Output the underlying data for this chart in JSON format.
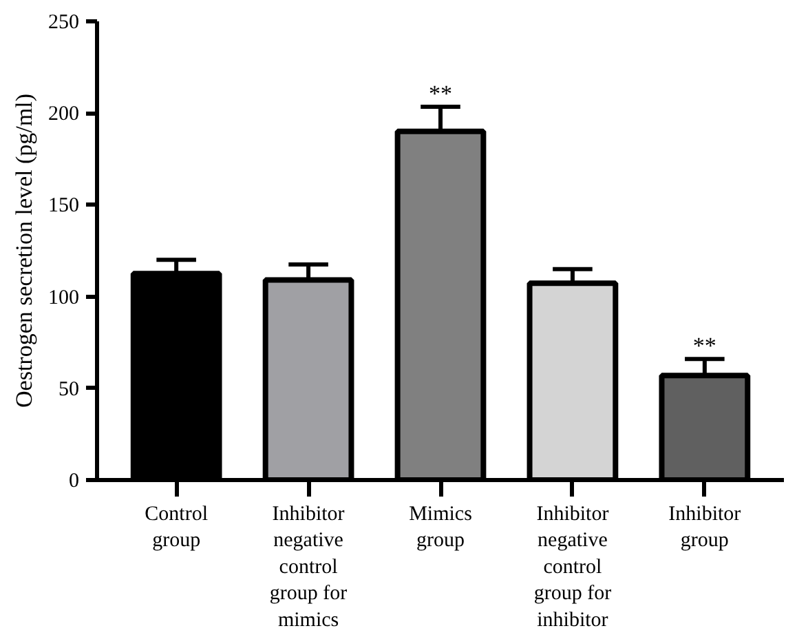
{
  "chart_data": {
    "type": "bar",
    "ylabel": "Oestrogen secretion level (pg/ml)",
    "categories": [
      "Control group",
      "Inhibitor negative control group for mimics",
      "Mimics group",
      "Inhibitor negative control group for inhibitor",
      "Inhibitor group"
    ],
    "values": [
      112.5,
      109,
      190,
      107.3,
      57
    ],
    "errors": [
      7.5,
      8.5,
      13.5,
      7.7,
      9
    ],
    "colors": [
      "#000000",
      "#a0a0a4",
      "#808080",
      "#d4d4d4",
      "#606060"
    ],
    "ylim": [
      0,
      250
    ],
    "yticks": [
      0,
      50,
      100,
      150,
      200,
      250
    ],
    "grid": false,
    "annotations": [
      {
        "text": "**",
        "x": "Mimics group",
        "y": 203.5
      },
      {
        "text": "**",
        "x": "Inhibitor group",
        "y": 66
      }
    ]
  }
}
